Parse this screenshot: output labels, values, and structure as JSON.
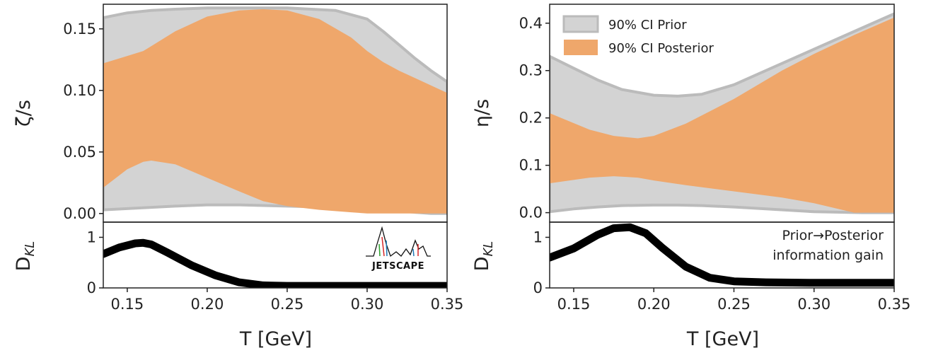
{
  "chart_data": [
    {
      "type": "area",
      "panel": "left-top",
      "ylabel": "ζ/s",
      "xlim": [
        0.135,
        0.35
      ],
      "ylim": [
        -0.007,
        0.17
      ],
      "yticks": [
        0.0,
        0.05,
        0.1,
        0.15
      ],
      "ytick_labels": [
        "0.00",
        "0.05",
        "0.10",
        "0.15"
      ],
      "series": [
        {
          "name": "90% CI Prior",
          "x": [
            0.135,
            0.15,
            0.165,
            0.18,
            0.2,
            0.22,
            0.25,
            0.28,
            0.3,
            0.31,
            0.32,
            0.33,
            0.34,
            0.35
          ],
          "lower": [
            0.003,
            0.004,
            0.005,
            0.006,
            0.007,
            0.007,
            0.006,
            0.005,
            0.004,
            0.003,
            0.002,
            0.001,
            0.0,
            0.0
          ],
          "upper": [
            0.159,
            0.163,
            0.165,
            0.166,
            0.167,
            0.167,
            0.167,
            0.165,
            0.158,
            0.148,
            0.137,
            0.126,
            0.116,
            0.107
          ]
        },
        {
          "name": "90% CI Posterior",
          "x": [
            0.135,
            0.15,
            0.16,
            0.165,
            0.18,
            0.2,
            0.22,
            0.235,
            0.25,
            0.27,
            0.29,
            0.3,
            0.31,
            0.32,
            0.33,
            0.35
          ],
          "lower": [
            0.021,
            0.036,
            0.042,
            0.043,
            0.04,
            0.029,
            0.018,
            0.01,
            0.006,
            0.003,
            0.001,
            0.0,
            0.0,
            0.0,
            0.0,
            0.0
          ],
          "upper": [
            0.122,
            0.128,
            0.132,
            0.136,
            0.148,
            0.16,
            0.165,
            0.166,
            0.165,
            0.158,
            0.143,
            0.132,
            0.123,
            0.116,
            0.11,
            0.098
          ]
        }
      ]
    },
    {
      "type": "line",
      "panel": "left-bottom",
      "ylabel": "D_KL",
      "xlabel": "T [GeV]",
      "xlim": [
        0.135,
        0.35
      ],
      "ylim": [
        0,
        1.3
      ],
      "yticks": [
        0,
        1
      ],
      "ytick_labels": [
        "0",
        "1"
      ],
      "xticks": [
        0.15,
        0.2,
        0.25,
        0.3,
        0.35
      ],
      "xtick_labels": [
        "0.15",
        "0.20",
        "0.25",
        "0.30",
        "0.35"
      ],
      "x": [
        0.135,
        0.145,
        0.155,
        0.16,
        0.165,
        0.175,
        0.19,
        0.205,
        0.22,
        0.235,
        0.25,
        0.27,
        0.3,
        0.35
      ],
      "y": [
        0.67,
        0.8,
        0.88,
        0.89,
        0.86,
        0.7,
        0.45,
        0.25,
        0.11,
        0.05,
        0.04,
        0.04,
        0.04,
        0.04
      ]
    },
    {
      "type": "area",
      "panel": "right-top",
      "ylabel": "η/s",
      "xlim": [
        0.135,
        0.35
      ],
      "ylim": [
        -0.02,
        0.44
      ],
      "yticks": [
        0.0,
        0.1,
        0.2,
        0.3,
        0.4
      ],
      "ytick_labels": [
        "0.0",
        "0.1",
        "0.2",
        "0.3",
        "0.4"
      ],
      "series": [
        {
          "name": "90% CI Prior",
          "x": [
            0.135,
            0.15,
            0.165,
            0.18,
            0.2,
            0.215,
            0.23,
            0.25,
            0.27,
            0.3,
            0.33,
            0.35
          ],
          "lower": [
            0.002,
            0.008,
            0.012,
            0.015,
            0.016,
            0.016,
            0.015,
            0.012,
            0.008,
            0.002,
            0.0,
            0.0
          ],
          "upper": [
            0.33,
            0.305,
            0.28,
            0.26,
            0.248,
            0.246,
            0.25,
            0.27,
            0.3,
            0.345,
            0.39,
            0.42
          ]
        },
        {
          "name": "90% CI Posterior",
          "x": [
            0.135,
            0.16,
            0.175,
            0.19,
            0.2,
            0.22,
            0.25,
            0.28,
            0.3,
            0.325,
            0.35
          ],
          "lower": [
            0.062,
            0.074,
            0.077,
            0.074,
            0.068,
            0.058,
            0.045,
            0.032,
            0.02,
            0.0,
            0.0
          ],
          "upper": [
            0.21,
            0.175,
            0.162,
            0.157,
            0.162,
            0.188,
            0.24,
            0.3,
            0.335,
            0.375,
            0.412
          ]
        }
      ],
      "legend": {
        "placement": "top-left",
        "entries": [
          "90% CI Prior",
          "90% CI Posterior"
        ]
      }
    },
    {
      "type": "line",
      "panel": "right-bottom",
      "ylabel": "D_KL",
      "xlabel": "T [GeV]",
      "xlim": [
        0.135,
        0.35
      ],
      "ylim": [
        0,
        1.3
      ],
      "yticks": [
        0,
        1
      ],
      "ytick_labels": [
        "0",
        "1"
      ],
      "xticks": [
        0.15,
        0.2,
        0.25,
        0.3,
        0.35
      ],
      "xtick_labels": [
        "0.15",
        "0.20",
        "0.25",
        "0.30",
        "0.35"
      ],
      "x": [
        0.135,
        0.15,
        0.165,
        0.175,
        0.185,
        0.195,
        0.205,
        0.22,
        0.235,
        0.25,
        0.27,
        0.3,
        0.35
      ],
      "y": [
        0.6,
        0.78,
        1.05,
        1.18,
        1.2,
        1.08,
        0.8,
        0.42,
        0.2,
        0.13,
        0.11,
        0.1,
        0.1
      ],
      "annotation": [
        "Prior→Posterior",
        "information gain"
      ]
    }
  ],
  "colors": {
    "prior_fill": "#d3d3d3",
    "prior_edge": "#bbbbbb",
    "posterior_fill": "#efa76b",
    "dkl_line": "#000000",
    "axis": "#222222"
  },
  "logo": {
    "text": "JETSCAPE"
  }
}
